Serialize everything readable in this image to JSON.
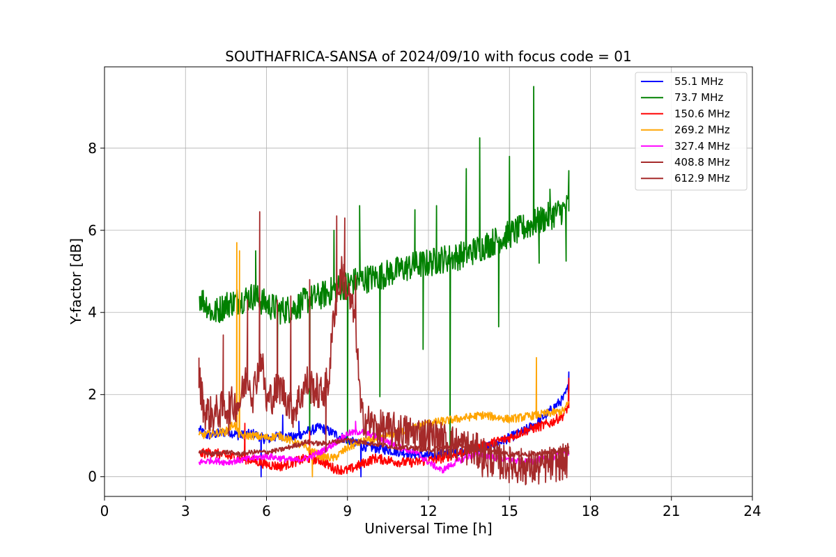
{
  "chart_data": {
    "type": "line",
    "title": "SOUTHAFRICA-SANSA of 2024/09/10 with focus code = 01",
    "xlabel": "Universal Time [h]",
    "ylabel": "Y-factor [dB]",
    "xlim": [
      0,
      24
    ],
    "ylim": [
      -0.48,
      9.98
    ],
    "xticks": [
      0,
      3,
      6,
      9,
      12,
      15,
      18,
      21,
      24
    ],
    "yticks": [
      0,
      2,
      4,
      6,
      8
    ],
    "grid": true,
    "legend_position": "top-right",
    "series": [
      {
        "name": " 55.1 MHz",
        "color": "#0000ff",
        "x": [
          3.5,
          3.8,
          4.2,
          4.6,
          5.0,
          5.5,
          6.0,
          6.5,
          7.0,
          7.5,
          8.0,
          8.5,
          9.0,
          9.5,
          10.0,
          10.5,
          11.0,
          11.5,
          12.0,
          12.5,
          13.0,
          13.5,
          14.0,
          14.5,
          15.0,
          15.5,
          16.0,
          16.5,
          17.0,
          17.2
        ],
        "y": [
          1.15,
          1.0,
          1.05,
          1.1,
          1.0,
          1.05,
          0.9,
          1.0,
          0.95,
          1.1,
          1.2,
          1.05,
          0.9,
          0.75,
          0.7,
          0.65,
          0.6,
          0.55,
          0.5,
          0.55,
          0.6,
          0.65,
          0.7,
          0.8,
          0.95,
          1.1,
          1.3,
          1.6,
          1.9,
          2.2
        ],
        "spikes": [
          [
            5.8,
            0.0
          ],
          [
            6.6,
            1.5
          ],
          [
            7.2,
            1.35
          ],
          [
            9.5,
            0.0
          ],
          [
            17.2,
            2.55
          ]
        ]
      },
      {
        "name": " 73.7 MHz",
        "color": "#008000",
        "x": [
          3.5,
          3.8,
          4.0,
          4.5,
          5.0,
          5.5,
          6.0,
          6.5,
          7.0,
          7.5,
          8.0,
          8.5,
          9.0,
          9.5,
          10.0,
          10.5,
          11.0,
          11.5,
          12.0,
          12.5,
          13.0,
          13.5,
          14.0,
          14.5,
          15.0,
          15.5,
          16.0,
          16.5,
          17.0,
          17.2
        ],
        "y": [
          4.4,
          4.2,
          3.95,
          4.2,
          4.3,
          4.4,
          4.2,
          4.05,
          4.1,
          4.3,
          4.4,
          4.55,
          4.7,
          4.8,
          4.85,
          4.95,
          5.05,
          5.15,
          5.2,
          5.3,
          5.35,
          5.45,
          5.6,
          5.75,
          5.9,
          6.05,
          6.2,
          6.35,
          6.5,
          6.6
        ],
        "spikes": [
          [
            5.6,
            5.5
          ],
          [
            6.4,
            2.0
          ],
          [
            7.6,
            0.9
          ],
          [
            8.5,
            6.0
          ],
          [
            9.0,
            0.8
          ],
          [
            9.45,
            6.6
          ],
          [
            10.2,
            1.95
          ],
          [
            11.5,
            6.5
          ],
          [
            11.8,
            3.1
          ],
          [
            12.3,
            6.6
          ],
          [
            12.8,
            0.65
          ],
          [
            13.4,
            7.5
          ],
          [
            13.9,
            8.25
          ],
          [
            14.6,
            3.65
          ],
          [
            15.0,
            7.8
          ],
          [
            15.9,
            9.5
          ],
          [
            16.1,
            5.2
          ],
          [
            16.5,
            7.0
          ],
          [
            17.1,
            5.25
          ],
          [
            17.2,
            7.45
          ]
        ]
      },
      {
        "name": " 150.6 MHz",
        "color": "#ff0000",
        "x": [
          3.5,
          4.0,
          4.5,
          5.0,
          5.5,
          6.0,
          6.5,
          7.0,
          7.5,
          8.0,
          8.5,
          9.0,
          9.5,
          10.0,
          10.5,
          11.0,
          11.5,
          12.0,
          12.5,
          13.0,
          13.5,
          14.0,
          14.5,
          15.0,
          15.5,
          16.0,
          16.5,
          17.0,
          17.2
        ],
        "y": [
          0.55,
          0.6,
          0.5,
          0.45,
          0.4,
          0.3,
          0.25,
          0.35,
          0.45,
          0.4,
          0.2,
          0.15,
          0.3,
          0.45,
          0.4,
          0.35,
          0.35,
          0.4,
          0.45,
          0.55,
          0.65,
          0.75,
          0.85,
          0.95,
          1.1,
          1.2,
          1.3,
          1.5,
          1.75
        ],
        "spikes": [
          [
            5.2,
            1.3
          ],
          [
            7.6,
            1.1
          ],
          [
            17.2,
            2.4
          ]
        ]
      },
      {
        "name": " 269.2 MHz",
        "color": "#ffa500",
        "x": [
          3.5,
          4.0,
          4.5,
          4.8,
          5.0,
          5.5,
          6.0,
          6.5,
          7.0,
          7.5,
          8.0,
          8.5,
          9.0,
          9.5,
          10.0,
          10.5,
          11.0,
          11.5,
          12.0,
          12.5,
          13.0,
          13.5,
          14.0,
          14.5,
          15.0,
          15.5,
          16.0,
          16.5,
          17.0,
          17.2
        ],
        "y": [
          1.0,
          1.05,
          1.1,
          1.3,
          1.0,
          1.0,
          0.95,
          1.0,
          0.85,
          0.7,
          0.5,
          0.45,
          0.7,
          0.85,
          0.9,
          1.0,
          1.1,
          1.2,
          1.3,
          1.35,
          1.4,
          1.45,
          1.5,
          1.45,
          1.4,
          1.45,
          1.5,
          1.55,
          1.6,
          1.8
        ],
        "spikes": [
          [
            4.9,
            5.7
          ],
          [
            5.0,
            5.5
          ],
          [
            7.7,
            0.0
          ],
          [
            16.0,
            2.9
          ]
        ]
      },
      {
        "name": " 327.4 MHz",
        "color": "#ff00ff",
        "x": [
          3.5,
          4.0,
          4.5,
          5.0,
          5.5,
          6.0,
          6.5,
          7.0,
          7.5,
          8.0,
          8.5,
          9.0,
          9.5,
          10.0,
          10.5,
          11.0,
          11.5,
          12.0,
          12.5,
          13.0,
          13.5,
          14.0,
          14.5,
          15.0,
          15.5,
          16.0,
          16.5,
          17.0,
          17.2
        ],
        "y": [
          0.35,
          0.4,
          0.35,
          0.4,
          0.45,
          0.5,
          0.45,
          0.4,
          0.45,
          0.6,
          0.8,
          1.05,
          1.1,
          1.0,
          0.85,
          0.7,
          0.6,
          0.35,
          0.15,
          0.35,
          0.5,
          0.55,
          0.45,
          0.4,
          0.35,
          0.4,
          0.45,
          0.55,
          0.6
        ],
        "spikes": [
          [
            9.3,
            1.35
          ]
        ]
      },
      {
        "name": " 408.8 MHz",
        "color": "#a52a2a",
        "x": [
          3.5,
          4.0,
          4.5,
          5.0,
          5.5,
          6.0,
          6.5,
          7.0,
          7.5,
          8.0,
          8.5,
          9.0,
          9.5,
          10.0,
          10.5,
          11.0,
          11.5,
          12.0,
          12.5,
          13.0,
          13.5,
          14.0,
          14.5,
          15.0,
          15.5,
          16.0,
          16.5,
          17.0,
          17.2
        ],
        "y": [
          0.6,
          0.55,
          0.6,
          0.55,
          0.6,
          0.6,
          0.65,
          0.75,
          0.85,
          0.8,
          0.85,
          0.9,
          0.85,
          0.8,
          0.75,
          0.7,
          0.7,
          0.65,
          0.7,
          0.75,
          0.7,
          0.65,
          0.6,
          0.55,
          0.55,
          0.55,
          0.6,
          0.65,
          0.7
        ],
        "spikes": []
      },
      {
        "name": " 612.9 MHz",
        "color": "#a52a2a",
        "x": [
          3.5,
          3.7,
          4.0,
          4.5,
          5.0,
          5.3,
          5.5,
          5.8,
          6.0,
          6.5,
          7.0,
          7.5,
          8.0,
          8.3,
          8.5,
          8.8,
          9.0,
          9.3,
          9.5,
          10.0,
          10.5,
          11.0,
          11.5,
          12.0,
          12.5,
          13.0,
          13.5,
          14.0,
          14.5,
          15.0,
          15.5,
          16.0,
          16.5,
          17.0,
          17.2
        ],
        "y": [
          2.4,
          1.6,
          1.5,
          1.7,
          1.8,
          2.5,
          2.0,
          3.0,
          1.8,
          2.2,
          1.6,
          2.3,
          2.0,
          2.3,
          4.0,
          5.0,
          4.5,
          3.8,
          1.5,
          1.2,
          1.15,
          1.1,
          1.05,
          1.0,
          0.9,
          0.8,
          0.7,
          0.55,
          0.4,
          0.3,
          0.25,
          0.2,
          0.3,
          0.35,
          0.4
        ],
        "spikes": [
          [
            3.5,
            2.9
          ],
          [
            4.4,
            3.45
          ],
          [
            4.6,
            1.0
          ],
          [
            5.3,
            4.3
          ],
          [
            5.75,
            6.45
          ],
          [
            6.4,
            4.3
          ],
          [
            6.9,
            4.4
          ],
          [
            7.6,
            4.8
          ],
          [
            8.2,
            0.6
          ],
          [
            8.6,
            6.35
          ],
          [
            8.9,
            6.3
          ],
          [
            9.3,
            4.9
          ],
          [
            12.0,
            0.8
          ],
          [
            14.0,
            0.0
          ],
          [
            14.2,
            0.0
          ]
        ]
      }
    ]
  }
}
